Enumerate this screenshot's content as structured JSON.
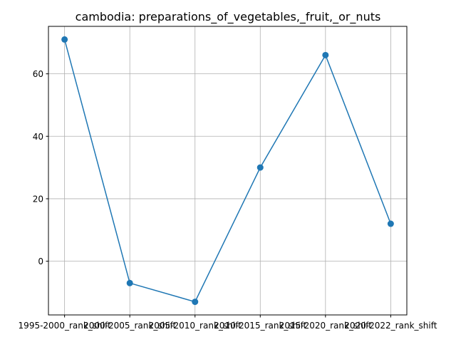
{
  "chart_data": {
    "type": "line",
    "title": "cambodia: preparations_of_vegetables,_fruit,_or_nuts",
    "xlabel": "",
    "ylabel": "",
    "categories": [
      "1995-2000_rank_shift",
      "2000-2005_rank_shift",
      "2005-2010_rank_shift",
      "2010-2015_rank_shift",
      "2015-2020_rank_shift",
      "2020-2022_rank_shift"
    ],
    "series": [
      {
        "values": [
          71,
          -7,
          -13,
          30,
          66,
          12
        ],
        "color": "#1f77b4",
        "marker": "circle"
      }
    ],
    "ylim": [
      -17.2,
      75.2
    ],
    "yticks": [
      0,
      20,
      40,
      60
    ],
    "grid": true,
    "legend": "none"
  }
}
